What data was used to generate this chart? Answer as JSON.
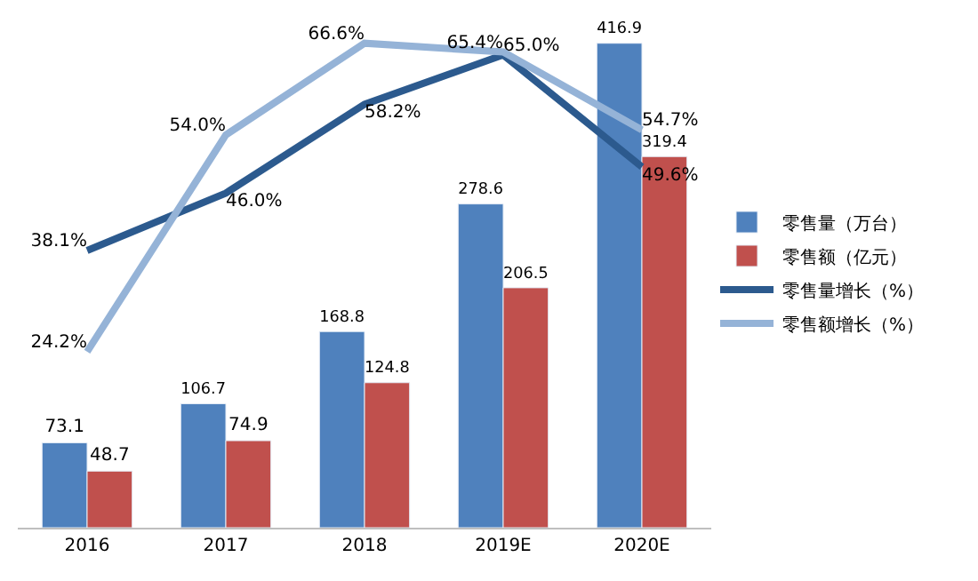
{
  "chart_data": {
    "type": "bar",
    "categories": [
      "2016",
      "2017",
      "2018",
      "2019E",
      "2020E"
    ],
    "tick_labels": "x",
    "legend": "right",
    "marker": "none",
    "line_style": "solid",
    "series": [
      {
        "name": "零售量（万台）",
        "color": "#4f81bd",
        "values": [
          73.1,
          106.7,
          168.8,
          278.6,
          416.9
        ],
        "value_labels": [
          "73.1",
          "106.7",
          "168.8",
          "278.6",
          "416.9"
        ]
      },
      {
        "name": "零售额（亿元）",
        "color": "#c0504d",
        "values": [
          48.7,
          74.9,
          124.8,
          206.5,
          319.4
        ],
        "value_labels": [
          "48.7",
          "74.9",
          "124.8",
          "206.5",
          "319.4"
        ]
      },
      {
        "name": "零售量增长（%）",
        "type": "line",
        "axis": "y2",
        "color": "#2c5a8e",
        "values": [
          38.1,
          46.0,
          58.2,
          65.0,
          49.6
        ],
        "value_labels": [
          "38.1%",
          "46.0%",
          "58.2%",
          "65.0%",
          "49.6%"
        ]
      },
      {
        "name": "零售额增长（%）",
        "type": "line",
        "axis": "y2",
        "color": "#95b3d7",
        "values": [
          24.2,
          54.0,
          66.6,
          65.4,
          54.7
        ],
        "value_labels": [
          "24.2%",
          "54.0%",
          "66.6%",
          "65.4%",
          "54.7%"
        ]
      }
    ]
  }
}
